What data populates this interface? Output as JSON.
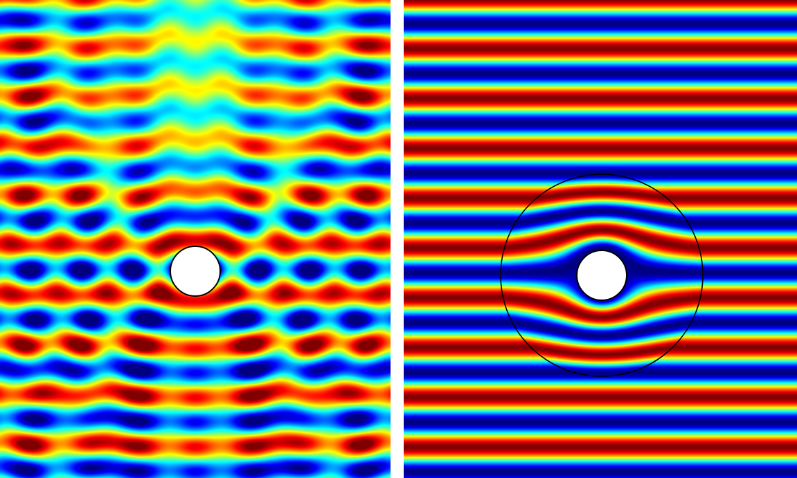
{
  "figure": {
    "panels": [
      {
        "id": "scattering-without-cloak",
        "pattern": "scattered",
        "has_cloak_ring": false
      },
      {
        "id": "scattering-with-cloak",
        "pattern": "cloaked",
        "has_cloak_ring": true
      }
    ],
    "colormap": "jet",
    "colors": {
      "background": "#ffffff",
      "object_fill": "#ffffff",
      "object_stroke": "#000000",
      "cloak_ring_stroke": "#000000"
    }
  }
}
